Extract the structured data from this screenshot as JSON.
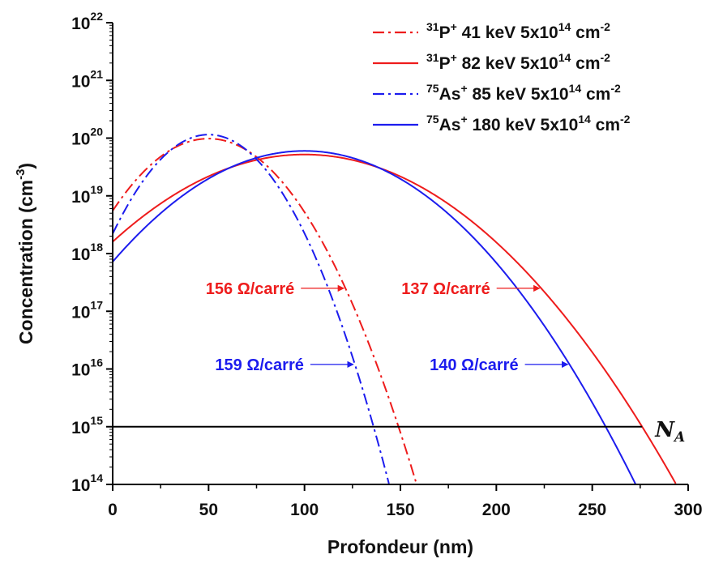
{
  "chart_data": {
    "type": "line",
    "xlabel": "Profondeur (nm)",
    "ylabel": "Concentration (cm",
    "ylabel_sup": "-3",
    "ylabel_end": ")",
    "xlim": [
      0,
      300
    ],
    "xticks": [
      "0",
      "50",
      "100",
      "150",
      "200",
      "250",
      "300"
    ],
    "ylog": true,
    "ylim_exp": [
      14,
      22
    ],
    "yticks": [
      {
        "base": "10",
        "exp": "14"
      },
      {
        "base": "10",
        "exp": "15"
      },
      {
        "base": "10",
        "exp": "16"
      },
      {
        "base": "10",
        "exp": "17"
      },
      {
        "base": "10",
        "exp": "18"
      },
      {
        "base": "10",
        "exp": "19"
      },
      {
        "base": "10",
        "exp": "20"
      },
      {
        "base": "10",
        "exp": "21"
      },
      {
        "base": "10",
        "exp": "22"
      }
    ],
    "grid": false,
    "legend_position": "top-right",
    "series": [
      {
        "legend": {
          "isotope": "31",
          "ion": "P",
          "charge": "+",
          "text": " 41 keV 5x10",
          "dose_exp": "14",
          "unit": " cm",
          "unit_exp": "-2"
        },
        "color": "#ee1c1c",
        "style": "dashdot",
        "peak_depth_nm": 50,
        "peak_conc": 9.8e+19,
        "surface_conc": 5.5e+18,
        "depth_at_1e15_nm": 149,
        "depth_at_1e14_nm": 158
      },
      {
        "legend": {
          "isotope": "31",
          "ion": "P",
          "charge": "+",
          "text": " 82 keV 5x10",
          "dose_exp": "14",
          "unit": " cm",
          "unit_exp": "-2"
        },
        "color": "#ee1c1c",
        "style": "solid",
        "peak_depth_nm": 100,
        "peak_conc": 5.2e+19,
        "surface_conc": 1.6e+18,
        "depth_at_1e15_nm": 276,
        "depth_at_1e14_nm": 292
      },
      {
        "legend": {
          "isotope": "75",
          "ion": "As",
          "charge": "+",
          "text": " 85 keV 5x10",
          "dose_exp": "14",
          "unit": " cm",
          "unit_exp": "-2"
        },
        "color": "#1c1cee",
        "style": "dashdot",
        "peak_depth_nm": 50,
        "peak_conc": 1.15e+20,
        "surface_conc": 2.2e+18,
        "depth_at_1e15_nm": 136,
        "depth_at_1e14_nm": 144
      },
      {
        "legend": {
          "isotope": "75",
          "ion": "As",
          "charge": "+",
          "text": " 180 keV 5x10",
          "dose_exp": "14",
          "unit": " cm",
          "unit_exp": "-2"
        },
        "color": "#1c1cee",
        "style": "solid",
        "peak_depth_nm": 100,
        "peak_conc": 6e+19,
        "surface_conc": 7.2e+17,
        "depth_at_1e15_nm": 257,
        "depth_at_1e14_nm": 272
      }
    ],
    "reference_line": {
      "label": "N",
      "label_sub": "A",
      "y": 1000000000000000.0,
      "x_range": [
        0,
        276
      ],
      "color": "#000000"
    },
    "annotations": [
      {
        "text": "156 Ω/carré",
        "color": "#ee1c1c",
        "arrow_to_series": 0,
        "arrow_y": 2.5e+17
      },
      {
        "text": "137 Ω/carré",
        "color": "#ee1c1c",
        "arrow_to_series": 1,
        "arrow_y": 2.5e+17
      },
      {
        "text": "159 Ω/carré",
        "color": "#1c1cee",
        "arrow_to_series": 2,
        "arrow_y": 1.2e+16
      },
      {
        "text": "140 Ω/carré",
        "color": "#1c1cee",
        "arrow_to_series": 3,
        "arrow_y": 1.2e+16
      }
    ]
  }
}
